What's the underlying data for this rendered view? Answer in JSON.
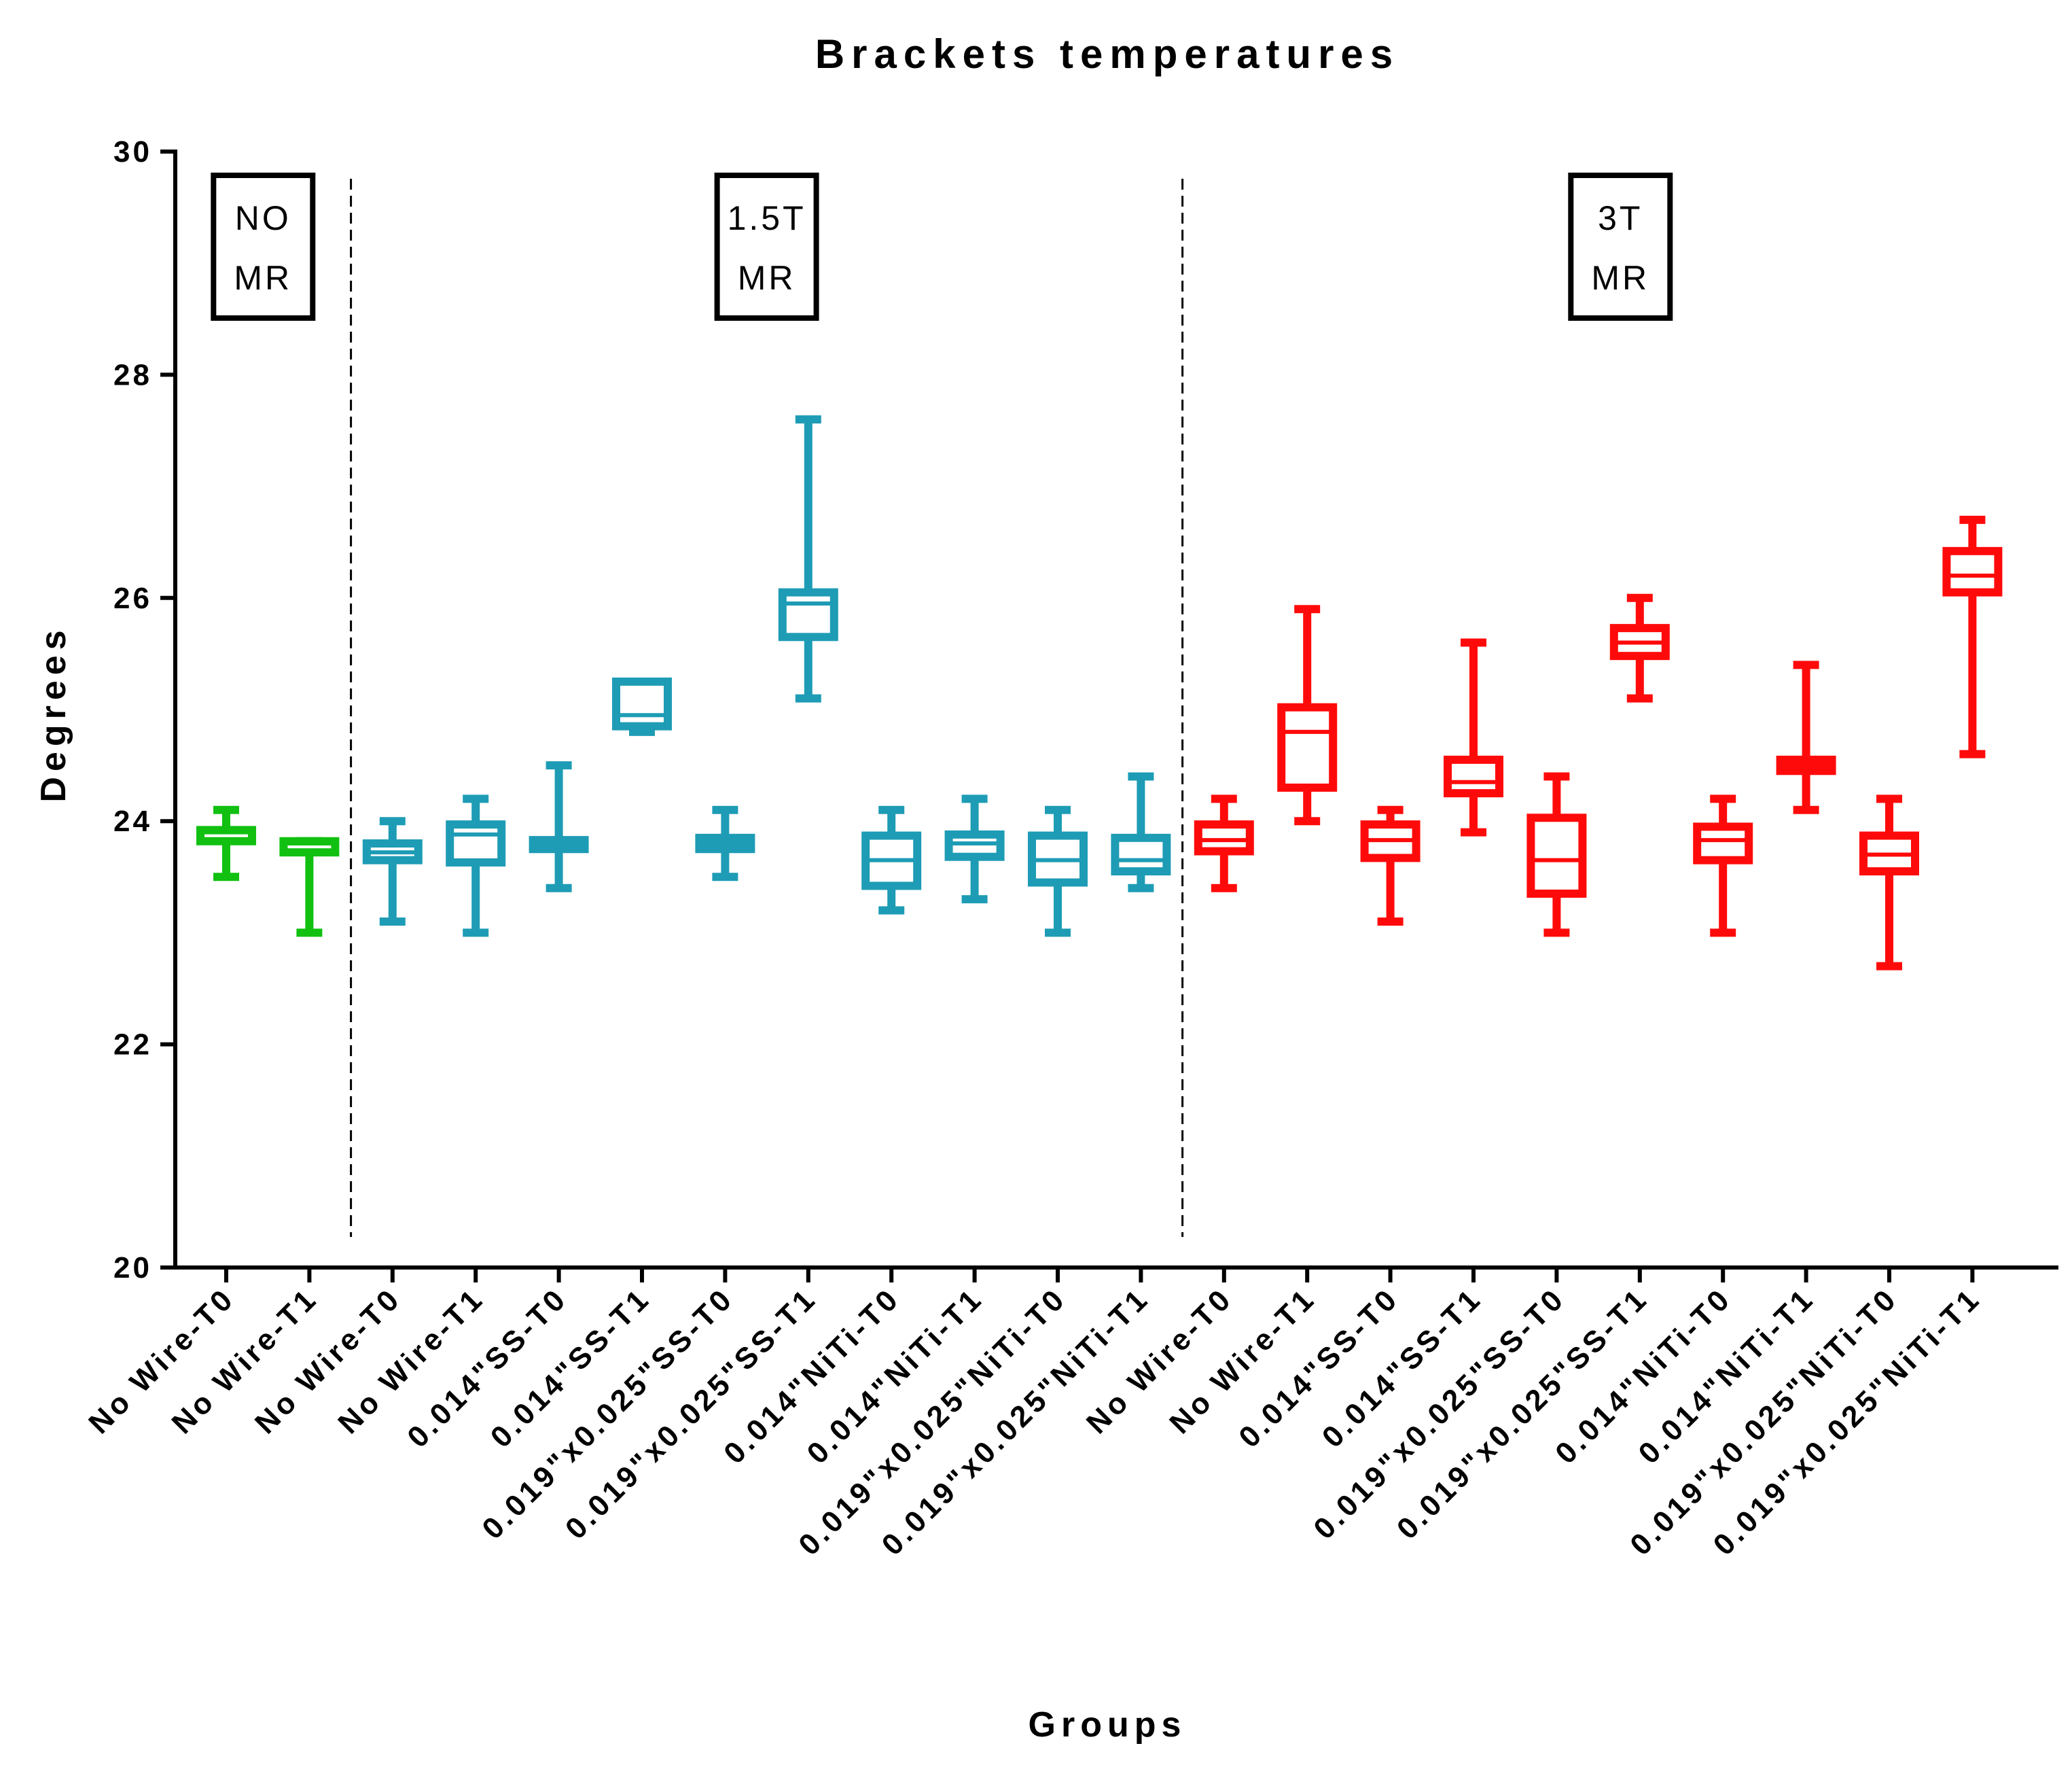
{
  "chart_data": {
    "type": "box",
    "title": "Brackets temperatures",
    "xlabel": "Groups",
    "ylabel": "Degrees",
    "ylim": [
      20,
      30
    ],
    "yticks": [
      20,
      22,
      24,
      26,
      28,
      30
    ],
    "group_colors": {
      "no_mr": "#11c011",
      "mr_1_5t": "#1e9cb5",
      "mr_3t": "#ff0a0a"
    },
    "group_boxes": [
      {
        "lines": [
          "NO",
          "MR"
        ]
      },
      {
        "lines": [
          "1.5T",
          "MR"
        ]
      },
      {
        "lines": [
          "3T",
          "MR"
        ]
      }
    ],
    "categories": [
      {
        "label": "No Wire-T0",
        "group": "no_mr",
        "min": 23.5,
        "q1": 23.82,
        "median": 23.9,
        "q3": 23.92,
        "max": 24.1
      },
      {
        "label": "No Wire-T1",
        "group": "no_mr",
        "min": 23.0,
        "q1": 23.72,
        "median": 23.8,
        "q3": 23.82,
        "max": 23.82
      },
      {
        "label": "No Wire-T0",
        "group": "mr_1_5t",
        "min": 23.1,
        "q1": 23.65,
        "median": 23.72,
        "q3": 23.8,
        "max": 24.0
      },
      {
        "label": "No Wire-T1",
        "group": "mr_1_5t",
        "min": 23.0,
        "q1": 23.63,
        "median": 23.88,
        "q3": 23.97,
        "max": 24.2
      },
      {
        "label": "0.014\"SS-T0",
        "group": "mr_1_5t",
        "min": 23.4,
        "q1": 23.75,
        "median": 23.8,
        "q3": 23.83,
        "max": 24.5
      },
      {
        "label": "0.014\"SS-T1",
        "group": "mr_1_5t",
        "min": 24.8,
        "q1": 24.85,
        "median": 24.95,
        "q3": 25.25,
        "max": 25.25
      },
      {
        "label": "0.019\"x0.025\"SS-T0",
        "group": "mr_1_5t",
        "min": 23.5,
        "q1": 23.75,
        "median": 23.8,
        "q3": 23.85,
        "max": 24.1
      },
      {
        "label": "0.019\"x0.025\"SS-T1",
        "group": "mr_1_5t",
        "min": 25.1,
        "q1": 25.65,
        "median": 25.95,
        "q3": 26.05,
        "max": 27.6
      },
      {
        "label": "0.014\"NiTi-T0",
        "group": "mr_1_5t",
        "min": 23.2,
        "q1": 23.42,
        "median": 23.65,
        "q3": 23.87,
        "max": 24.1
      },
      {
        "label": "0.014\"NiTi-T1",
        "group": "mr_1_5t",
        "min": 23.3,
        "q1": 23.68,
        "median": 23.8,
        "q3": 23.88,
        "max": 24.2
      },
      {
        "label": "0.019\"x0.025\"NiTi-T0",
        "group": "mr_1_5t",
        "min": 23.0,
        "q1": 23.45,
        "median": 23.65,
        "q3": 23.87,
        "max": 24.1
      },
      {
        "label": "0.019\"x0.025\"NiTi-T1",
        "group": "mr_1_5t",
        "min": 23.4,
        "q1": 23.55,
        "median": 23.65,
        "q3": 23.85,
        "max": 24.4
      },
      {
        "label": "No Wire-T0",
        "group": "mr_3t",
        "min": 23.4,
        "q1": 23.73,
        "median": 23.83,
        "q3": 23.97,
        "max": 24.2
      },
      {
        "label": "No Wire-T1",
        "group": "mr_3t",
        "min": 24.0,
        "q1": 24.3,
        "median": 24.8,
        "q3": 25.02,
        "max": 25.9
      },
      {
        "label": "0.014\"SS-T0",
        "group": "mr_3t",
        "min": 23.1,
        "q1": 23.67,
        "median": 23.83,
        "q3": 23.97,
        "max": 24.1
      },
      {
        "label": "0.014\"SS-T1",
        "group": "mr_3t",
        "min": 23.9,
        "q1": 24.25,
        "median": 24.35,
        "q3": 24.55,
        "max": 25.6
      },
      {
        "label": "0.019\"x0.025\"SS-T0",
        "group": "mr_3t",
        "min": 23.0,
        "q1": 23.35,
        "median": 23.65,
        "q3": 24.03,
        "max": 24.4
      },
      {
        "label": "0.019\"x0.025\"SS-T1",
        "group": "mr_3t",
        "min": 25.1,
        "q1": 25.48,
        "median": 25.6,
        "q3": 25.73,
        "max": 26.0
      },
      {
        "label": "0.014\"NiTi-T0",
        "group": "mr_3t",
        "min": 23.0,
        "q1": 23.65,
        "median": 23.83,
        "q3": 23.95,
        "max": 24.2
      },
      {
        "label": "0.014\"NiTi-T1",
        "group": "mr_3t",
        "min": 24.1,
        "q1": 24.45,
        "median": 24.5,
        "q3": 24.55,
        "max": 25.4
      },
      {
        "label": "0.019\"x0.025\"NiTi-T0",
        "group": "mr_3t",
        "min": 22.7,
        "q1": 23.55,
        "median": 23.7,
        "q3": 23.87,
        "max": 24.2
      },
      {
        "label": "0.019\"x0.025\"NiTi-T1",
        "group": "mr_3t",
        "min": 24.6,
        "q1": 26.05,
        "median": 26.2,
        "q3": 26.42,
        "max": 26.7
      }
    ]
  }
}
